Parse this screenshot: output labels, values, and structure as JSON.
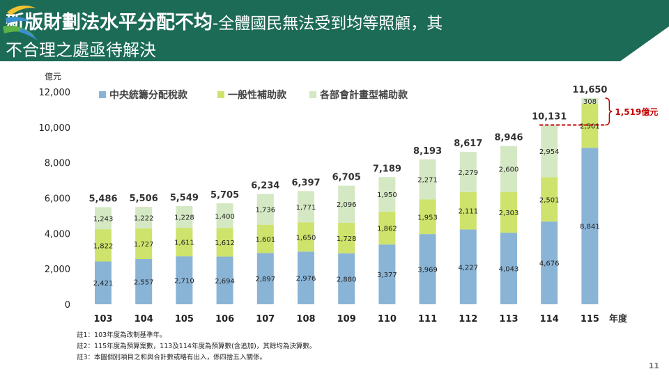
{
  "title": {
    "part1": "新版財劃法水平分配不均",
    "part2": "-全體國民無法受到均等照顧，其",
    "line2": "不合理之處亟待解決"
  },
  "page_number": "11",
  "notes": [
    "註1：103年度為改制基準年。",
    "註2：115年度為預算案數，113及114年度為預算數(含追加)，其餘均為決算數。",
    "註3：本圖個別項目之和與合計數或略有出入，係四捨五入關係。"
  ],
  "colors": {
    "header_bg": "#1c6b56",
    "central": "#8ab4d6",
    "general": "#cde36b",
    "department": "#d5e8c4",
    "annotation": "#c00000"
  },
  "chart_data": {
    "type": "bar",
    "stacked": true,
    "ylabel": "億元",
    "xlabel": "年度",
    "ylim": [
      0,
      12000
    ],
    "yticks": [
      "0",
      "2,000",
      "4,000",
      "6,000",
      "8,000",
      "10,000",
      "12,000"
    ],
    "categories": [
      "103",
      "104",
      "105",
      "106",
      "107",
      "108",
      "109",
      "110",
      "111",
      "112",
      "113",
      "114",
      "115"
    ],
    "series": [
      {
        "name": "中央統籌分配稅款",
        "color": "#8ab4d6",
        "values": [
          2421,
          2557,
          2710,
          2694,
          2897,
          2976,
          2880,
          3377,
          3969,
          4227,
          4043,
          4676,
          8841
        ],
        "labels": [
          "2,421",
          "2,557",
          "2,710",
          "2,694",
          "2,897",
          "2,976",
          "2,880",
          "3,377",
          "3,969",
          "4,227",
          "4,043",
          "4,676",
          "8,841"
        ]
      },
      {
        "name": "一般性補助款",
        "color": "#cde36b",
        "values": [
          1822,
          1727,
          1611,
          1612,
          1601,
          1650,
          1728,
          1862,
          1953,
          2111,
          2303,
          2501,
          2501
        ],
        "labels": [
          "1,822",
          "1,727",
          "1,611",
          "1,612",
          "1,601",
          "1,650",
          "1,728",
          "1,862",
          "1,953",
          "2,111",
          "2,303",
          "2,501",
          "2,501"
        ]
      },
      {
        "name": "各部會計畫型補助款",
        "color": "#d5e8c4",
        "values": [
          1243,
          1222,
          1228,
          1400,
          1736,
          1771,
          2096,
          1950,
          2271,
          2279,
          2600,
          2954,
          308
        ],
        "labels": [
          "1,243",
          "1,222",
          "1,228",
          "1,400",
          "1,736",
          "1,771",
          "2,096",
          "1,950",
          "2,271",
          "2,279",
          "2,600",
          "2,954",
          "308"
        ]
      }
    ],
    "totals": [
      5486,
      5506,
      5549,
      5705,
      6234,
      6397,
      6705,
      7189,
      8193,
      8617,
      8946,
      10131,
      11650
    ],
    "total_labels": [
      "5,486",
      "5,506",
      "5,549",
      "5,705",
      "6,234",
      "6,397",
      "6,705",
      "7,189",
      "8,193",
      "8,617",
      "8,946",
      "10,131",
      "11,650"
    ],
    "annotation": {
      "text": "1,519億元",
      "from_total": 10131,
      "to_total": 11650
    },
    "legend": "top-left",
    "grid": false
  }
}
